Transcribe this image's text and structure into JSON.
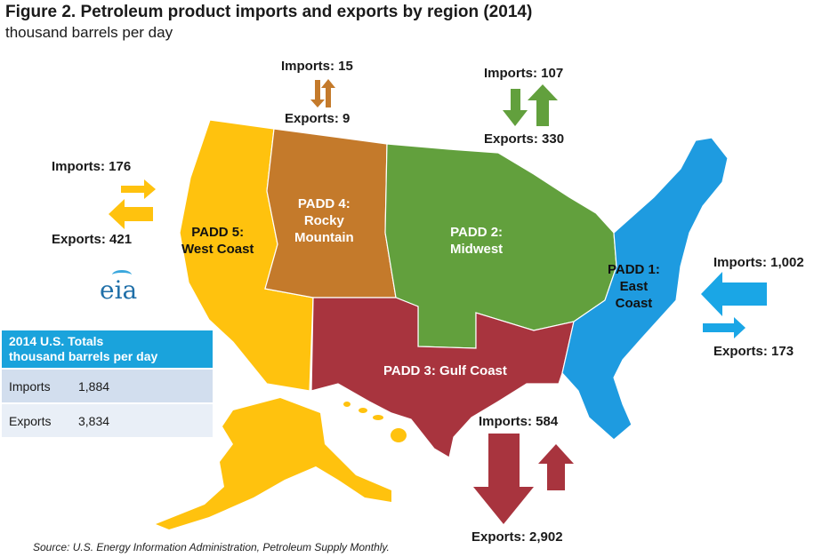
{
  "title": "Figure 2. Petroleum product imports and exports by region (2014)",
  "subtitle": "thousand barrels per day",
  "regions": [
    {
      "line1": "PADD 5:",
      "line2": "West Coast",
      "line3": "",
      "color": "#ffc20e",
      "imports_label": "Imports: 176",
      "exports_label": "Exports: 421",
      "imports": 176,
      "exports": 421
    },
    {
      "line1": "PADD 4:",
      "line2": "Rocky",
      "line3": "Mountain",
      "color": "#c47a2b",
      "imports_label": "Imports: 15",
      "exports_label": "Exports: 9",
      "imports": 15,
      "exports": 9
    },
    {
      "line1": "PADD 2:",
      "line2": "Midwest",
      "line3": "",
      "color": "#62a03d",
      "imports_label": "Imports: 107",
      "exports_label": "Exports: 330",
      "imports": 107,
      "exports": 330
    },
    {
      "line1": "PADD 1:",
      "line2": "East",
      "line3": "Coast",
      "color": "#1e9be0",
      "imports_label": "Imports: 1,002",
      "exports_label": "Exports: 173",
      "imports": 1002,
      "exports": 173
    },
    {
      "line1": "PADD 3: Gulf Coast",
      "line2": "",
      "line3": "",
      "color": "#a8343e",
      "imports_label": "Imports: 584",
      "exports_label": "Exports: 2,902",
      "imports": 584,
      "exports": 2902
    }
  ],
  "totals": {
    "header_line1": "2014 U.S. Totals",
    "header_line2": "thousand barrels per day",
    "rows": [
      {
        "label": "Imports",
        "value": "1,884"
      },
      {
        "label": "Exports",
        "value": "3,834"
      }
    ]
  },
  "logo": "eia",
  "source": "Source: U.S. Energy Information Administration, Petroleum Supply Monthly."
}
